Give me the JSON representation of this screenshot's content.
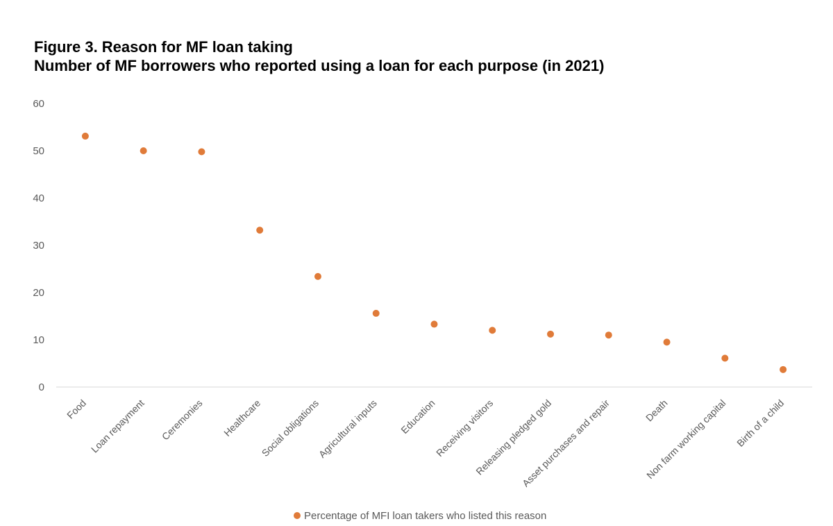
{
  "figure": {
    "title_line1": "Figure 3. Reason for MF loan taking",
    "title_line2": "Number of MF borrowers who reported using a loan for each purpose (in 2021)"
  },
  "chart_data": {
    "type": "scatter",
    "categories": [
      "Food",
      "Loan repayment",
      "Ceremonies",
      "Healthcare",
      "Social obligations",
      "Agricultural inputs",
      "Education",
      "Receiving visitors",
      "Releasing pledged gold",
      "Asset purchases and repair",
      "Death",
      "Non farm working capital",
      "Birth of a child"
    ],
    "series": [
      {
        "name": "Percentage of MFI loan takers who listed this reason",
        "values": [
          53.1,
          50.0,
          49.8,
          33.2,
          23.4,
          15.6,
          13.3,
          12.0,
          11.2,
          11.0,
          9.5,
          6.1,
          3.7
        ],
        "color": "#E07B39"
      }
    ],
    "ylim": [
      0,
      60
    ],
    "yticks": [
      0,
      10,
      20,
      30,
      40,
      50,
      60
    ],
    "grid": false,
    "legend_position": "bottom",
    "xlabel": "",
    "ylabel": ""
  }
}
